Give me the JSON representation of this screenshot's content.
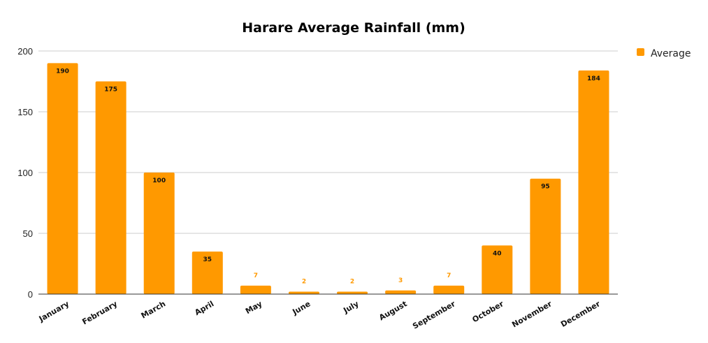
{
  "chart_data": {
    "type": "bar",
    "title": "Harare Average Rainfall (mm)",
    "xlabel": "",
    "ylabel": "",
    "categories": [
      "January",
      "February",
      "March",
      "April",
      "May",
      "June",
      "July",
      "August",
      "September",
      "October",
      "November",
      "December"
    ],
    "series": [
      {
        "name": "Average",
        "color": "#ff9900",
        "values": [
          190,
          175,
          100,
          35,
          7,
          2,
          2,
          3,
          7,
          40,
          95,
          184
        ]
      }
    ],
    "ylim": [
      0,
      200
    ],
    "yticks": [
      0,
      50,
      100,
      150,
      200
    ],
    "grid": true,
    "legend": "right",
    "data_labels": true
  }
}
